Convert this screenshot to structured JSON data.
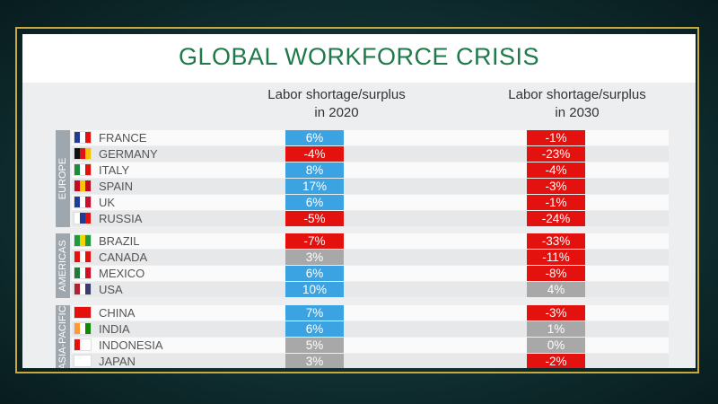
{
  "title": "GLOBAL WORKFORCE CRISIS",
  "headers": [
    "Labor shortage/surplus\nin 2020",
    "Labor shortage/surplus\nin 2030"
  ],
  "groups": [
    {
      "name": "EUROPE",
      "rows": [
        {
          "country": "FRANCE",
          "y2020": "6%",
          "c2020": "#3ba3e2",
          "y2030": "-1%",
          "c2030": "#e3120f"
        },
        {
          "country": "GERMANY",
          "y2020": "-4%",
          "c2020": "#e3120f",
          "y2030": "-23%",
          "c2030": "#e3120f"
        },
        {
          "country": "ITALY",
          "y2020": "8%",
          "c2020": "#3ba3e2",
          "y2030": "-4%",
          "c2030": "#e3120f"
        },
        {
          "country": "SPAIN",
          "y2020": "17%",
          "c2020": "#3ba3e2",
          "y2030": "-3%",
          "c2030": "#e3120f"
        },
        {
          "country": "UK",
          "y2020": "6%",
          "c2020": "#3ba3e2",
          "y2030": "-1%",
          "c2030": "#e3120f"
        },
        {
          "country": "RUSSIA",
          "y2020": "-5%",
          "c2020": "#e3120f",
          "y2030": "-24%",
          "c2030": "#e3120f"
        }
      ]
    },
    {
      "name": "AMERICAS",
      "rows": [
        {
          "country": "BRAZIL",
          "y2020": "-7%",
          "c2020": "#e3120f",
          "y2030": "-33%",
          "c2030": "#e3120f"
        },
        {
          "country": "CANADA",
          "y2020": "3%",
          "c2020": "#a8a8a8",
          "y2030": "-11%",
          "c2030": "#e3120f"
        },
        {
          "country": "MEXICO",
          "y2020": "6%",
          "c2020": "#3ba3e2",
          "y2030": "-8%",
          "c2030": "#e3120f"
        },
        {
          "country": "USA",
          "y2020": "10%",
          "c2020": "#3ba3e2",
          "y2030": "4%",
          "c2030": "#a8a8a8"
        }
      ]
    },
    {
      "name": "ASIA-PACIFIC",
      "rows": [
        {
          "country": "CHINA",
          "y2020": "7%",
          "c2020": "#3ba3e2",
          "y2030": "-3%",
          "c2030": "#e3120f"
        },
        {
          "country": "INDIA",
          "y2020": "6%",
          "c2020": "#3ba3e2",
          "y2030": "1%",
          "c2030": "#a8a8a8"
        },
        {
          "country": "INDONESIA",
          "y2020": "5%",
          "c2020": "#a8a8a8",
          "y2030": "0%",
          "c2030": "#a8a8a8"
        },
        {
          "country": "JAPAN",
          "y2020": "3%",
          "c2020": "#a8a8a8",
          "y2030": "-2%",
          "c2030": "#e3120f"
        }
      ]
    }
  ]
}
